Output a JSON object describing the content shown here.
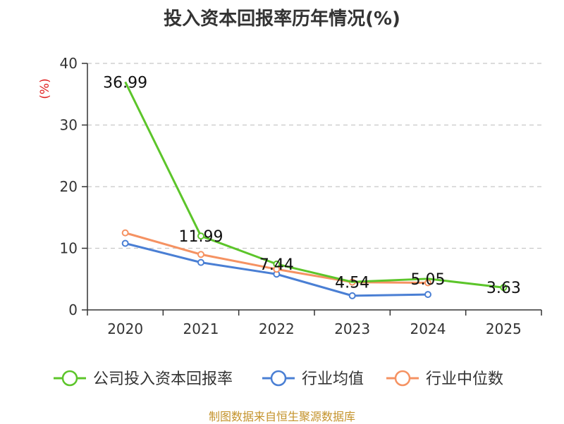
{
  "chart_data": {
    "type": "line",
    "title": "投入资本回报率历年情况(%)",
    "ylabel": "(%)",
    "xlabel": "",
    "categories": [
      "2020",
      "2021",
      "2022",
      "2023",
      "2024",
      "2025"
    ],
    "ylim": [
      0,
      40
    ],
    "yticks": [
      0,
      10,
      20,
      30,
      40
    ],
    "grid": true,
    "legend_position": "bottom",
    "series": [
      {
        "name": "公司投入资本回报率",
        "color": "#5cc52a",
        "values": [
          36.99,
          11.99,
          7.44,
          4.54,
          5.05,
          3.63
        ],
        "labels": [
          "36.99",
          "11.99",
          "7.44",
          "4.54",
          "5.05",
          "3.63"
        ],
        "markers": [
          false,
          true,
          true,
          false,
          false,
          true
        ]
      },
      {
        "name": "行业均值",
        "color": "#4a7fd4",
        "values": [
          10.8,
          7.7,
          5.8,
          2.3,
          2.5,
          null
        ],
        "markers": [
          true,
          true,
          true,
          true,
          true,
          false
        ]
      },
      {
        "name": "行业中位数",
        "color": "#f59262",
        "values": [
          12.5,
          9.0,
          6.6,
          4.5,
          4.4,
          null
        ],
        "markers": [
          true,
          true,
          true,
          true,
          true,
          false
        ]
      }
    ]
  },
  "source": "制图数据来自恒生聚源数据库"
}
